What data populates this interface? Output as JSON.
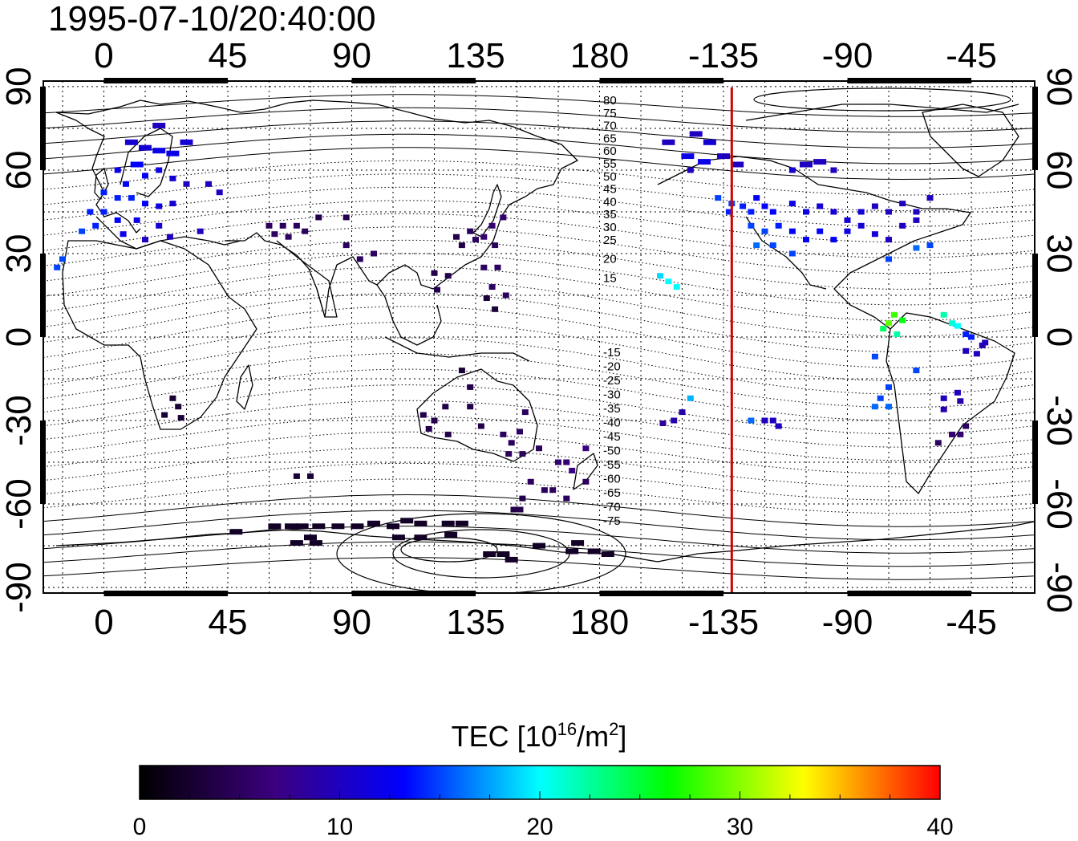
{
  "timestamp": "1995-07-10/20:40:00",
  "map": {
    "lon_ticks_top": [
      "0",
      "45",
      "90",
      "135",
      "180",
      "-135",
      "-90",
      "-45"
    ],
    "lon_ticks_bottom": [
      "0",
      "45",
      "90",
      "135",
      "180",
      "-135",
      "-90",
      "-45"
    ],
    "lat_ticks_left": [
      "90",
      "60",
      "30",
      "0",
      "-30",
      "-60",
      "-90"
    ],
    "lat_ticks_right": [
      "90",
      "60",
      "30",
      "0",
      "-30",
      "-60",
      "-90"
    ],
    "lon_range": [
      -22,
      338
    ],
    "lat_range": [
      -92,
      92
    ],
    "terminator_lon": -132,
    "terminator_color": "#d40000",
    "grid": true,
    "contour_labels_north": [
      "80",
      "75",
      "70",
      "65",
      "60",
      "55",
      "50",
      "45",
      "40",
      "35",
      "30",
      "25",
      "20",
      "15"
    ],
    "contour_labels_south": [
      "-15",
      "-20",
      "-25",
      "-30",
      "-35",
      "-40",
      "-45",
      "-50",
      "-55",
      "-60",
      "-65",
      "-70",
      "-75"
    ]
  },
  "colorbar": {
    "title_main": "TEC  [10",
    "title_sup": "16",
    "title_mid": "/m",
    "title_sup2": "2",
    "title_end": "]",
    "ticks": [
      "0",
      "10",
      "20",
      "30",
      "40"
    ],
    "min": 0,
    "max": 40,
    "colormap": [
      "#000000",
      "#3c0080",
      "#0000ff",
      "#00ffff",
      "#00ff00",
      "#ffff00",
      "#ff0000"
    ]
  },
  "chart_data": {
    "type": "scatter",
    "title": "1995-07-10/20:40:00",
    "xlabel": "",
    "ylabel": "",
    "xlim": [
      -22,
      338
    ],
    "ylim": [
      -92,
      92
    ],
    "value_label": "TEC [10^16/m^2]",
    "value_range": [
      0,
      40
    ],
    "points": [
      [
        10,
        70,
        11
      ],
      [
        15,
        68,
        11
      ],
      [
        20,
        67,
        12
      ],
      [
        25,
        66,
        12
      ],
      [
        30,
        70,
        11
      ],
      [
        12,
        62,
        13
      ],
      [
        5,
        60,
        12
      ],
      [
        8,
        55,
        13
      ],
      [
        15,
        58,
        13
      ],
      [
        20,
        60,
        12
      ],
      [
        25,
        57,
        11
      ],
      [
        30,
        55,
        10
      ],
      [
        38,
        55,
        10
      ],
      [
        42,
        52,
        10
      ],
      [
        0,
        52,
        14
      ],
      [
        5,
        50,
        14
      ],
      [
        10,
        50,
        14
      ],
      [
        15,
        48,
        13
      ],
      [
        20,
        47,
        12
      ],
      [
        25,
        48,
        11
      ],
      [
        -5,
        45,
        14
      ],
      [
        0,
        45,
        14
      ],
      [
        5,
        42,
        13
      ],
      [
        12,
        42,
        12
      ],
      [
        20,
        40,
        11
      ],
      [
        -8,
        38,
        15
      ],
      [
        -3,
        40,
        14
      ],
      [
        7,
        37,
        12
      ],
      [
        15,
        35,
        10
      ],
      [
        24,
        36,
        10
      ],
      [
        -15,
        28,
        15
      ],
      [
        -17,
        25,
        15
      ],
      [
        20,
        76,
        10
      ],
      [
        35,
        38,
        10
      ],
      [
        60,
        40,
        5
      ],
      [
        65,
        40,
        5
      ],
      [
        70,
        40,
        5
      ],
      [
        73,
        38,
        5
      ],
      [
        78,
        43,
        4
      ],
      [
        88,
        43,
        4
      ],
      [
        62,
        37,
        5
      ],
      [
        67,
        36,
        5
      ],
      [
        88,
        33,
        5
      ],
      [
        93,
        28,
        5
      ],
      [
        98,
        30,
        5
      ],
      [
        128,
        36,
        4
      ],
      [
        130,
        33,
        4
      ],
      [
        133,
        38,
        5
      ],
      [
        135,
        35,
        5
      ],
      [
        138,
        36,
        6
      ],
      [
        141,
        40,
        6
      ],
      [
        145,
        43,
        6
      ],
      [
        142,
        33,
        5
      ],
      [
        138,
        25,
        5
      ],
      [
        143,
        25,
        5
      ],
      [
        141,
        18,
        5
      ],
      [
        146,
        15,
        5
      ],
      [
        120,
        23,
        4
      ],
      [
        121,
        17,
        4
      ],
      [
        125,
        22,
        4
      ],
      [
        139,
        14,
        3
      ],
      [
        142,
        10,
        3
      ],
      [
        130,
        -12,
        3
      ],
      [
        133,
        -18,
        4
      ],
      [
        124,
        -25,
        4
      ],
      [
        120,
        -30,
        4
      ],
      [
        118,
        -33,
        4
      ],
      [
        116,
        -28,
        4
      ],
      [
        125,
        -35,
        4
      ],
      [
        133,
        -25,
        4
      ],
      [
        137,
        -32,
        4
      ],
      [
        145,
        -35,
        5
      ],
      [
        148,
        -38,
        5
      ],
      [
        151,
        -34,
        5
      ],
      [
        153,
        -27,
        5
      ],
      [
        147,
        -42,
        5
      ],
      [
        152,
        -42,
        5
      ],
      [
        158,
        -40,
        5
      ],
      [
        165,
        -45,
        6
      ],
      [
        168,
        -45,
        6
      ],
      [
        170,
        -48,
        7
      ],
      [
        175,
        -40,
        7
      ],
      [
        175,
        -52,
        5
      ],
      [
        155,
        -52,
        5
      ],
      [
        160,
        -55,
        5
      ],
      [
        163,
        -55,
        5
      ],
      [
        168,
        -58,
        5
      ],
      [
        152,
        -58,
        4
      ],
      [
        150,
        -62,
        4
      ],
      [
        27,
        -25,
        3
      ],
      [
        28,
        -29,
        3
      ],
      [
        22,
        -28,
        3
      ],
      [
        25,
        -22,
        3
      ],
      [
        70,
        -50,
        3
      ],
      [
        75,
        -50,
        3
      ],
      [
        48,
        -70,
        2
      ],
      [
        62,
        -68,
        2
      ],
      [
        68,
        -68,
        2
      ],
      [
        72,
        -68,
        2
      ],
      [
        78,
        -68,
        2
      ],
      [
        85,
        -68,
        2
      ],
      [
        92,
        -68,
        2
      ],
      [
        98,
        -67,
        2
      ],
      [
        105,
        -68,
        2
      ],
      [
        110,
        -66,
        2
      ],
      [
        115,
        -67,
        2
      ],
      [
        125,
        -67,
        2
      ],
      [
        130,
        -67,
        2
      ],
      [
        75,
        -72,
        2
      ],
      [
        70,
        -74,
        2
      ],
      [
        77,
        -74,
        2
      ],
      [
        107,
        -72,
        2
      ],
      [
        115,
        -72,
        2
      ],
      [
        126,
        -71,
        2
      ],
      [
        140,
        -78,
        2
      ],
      [
        145,
        -78,
        2
      ],
      [
        148,
        -80,
        2
      ],
      [
        158,
        -75,
        2
      ],
      [
        170,
        -77,
        2
      ],
      [
        178,
        -77,
        2
      ],
      [
        183,
        -78,
        2
      ],
      [
        172,
        -74,
        2
      ],
      [
        205,
        70,
        10
      ],
      [
        215,
        73,
        10
      ],
      [
        220,
        70,
        11
      ],
      [
        225,
        65,
        10
      ],
      [
        230,
        62,
        10
      ],
      [
        212,
        65,
        12
      ],
      [
        218,
        63,
        12
      ],
      [
        213,
        60,
        10
      ],
      [
        223,
        50,
        15
      ],
      [
        228,
        48,
        15
      ],
      [
        232,
        47,
        14
      ],
      [
        237,
        50,
        13
      ],
      [
        227,
        45,
        14
      ],
      [
        235,
        45,
        14
      ],
      [
        240,
        47,
        13
      ],
      [
        243,
        45,
        13
      ],
      [
        250,
        48,
        12
      ],
      [
        255,
        45,
        12
      ],
      [
        260,
        47,
        11
      ],
      [
        265,
        45,
        11
      ],
      [
        270,
        42,
        11
      ],
      [
        275,
        45,
        11
      ],
      [
        280,
        47,
        10
      ],
      [
        285,
        45,
        10
      ],
      [
        290,
        48,
        10
      ],
      [
        295,
        45,
        10
      ],
      [
        300,
        50,
        10
      ],
      [
        235,
        40,
        15
      ],
      [
        240,
        38,
        15
      ],
      [
        245,
        40,
        14
      ],
      [
        250,
        38,
        13
      ],
      [
        255,
        35,
        13
      ],
      [
        260,
        38,
        13
      ],
      [
        265,
        35,
        13
      ],
      [
        270,
        38,
        12
      ],
      [
        275,
        40,
        11
      ],
      [
        280,
        37,
        11
      ],
      [
        237,
        33,
        16
      ],
      [
        243,
        33,
        15
      ],
      [
        250,
        30,
        15
      ],
      [
        285,
        35,
        10
      ],
      [
        290,
        40,
        10
      ],
      [
        295,
        42,
        10
      ],
      [
        250,
        60,
        11
      ],
      [
        255,
        62,
        10
      ],
      [
        260,
        63,
        10
      ],
      [
        265,
        60,
        10
      ],
      [
        295,
        32,
        16
      ],
      [
        300,
        33,
        15
      ],
      [
        285,
        28,
        15
      ],
      [
        202,
        22,
        19
      ],
      [
        205,
        20,
        20
      ],
      [
        208,
        18,
        20
      ],
      [
        213,
        -22,
        18
      ],
      [
        210,
        -27,
        9
      ],
      [
        207,
        -30,
        9
      ],
      [
        203,
        -31,
        8
      ],
      [
        287,
        8,
        28
      ],
      [
        285,
        5,
        29
      ],
      [
        290,
        6,
        26
      ],
      [
        283,
        3,
        24
      ],
      [
        288,
        1,
        22
      ],
      [
        305,
        8,
        22
      ],
      [
        308,
        5,
        21
      ],
      [
        310,
        4,
        20
      ],
      [
        315,
        0,
        14
      ],
      [
        319,
        -3,
        9
      ],
      [
        313,
        1,
        14
      ],
      [
        317,
        -6,
        10
      ],
      [
        313,
        -5,
        10
      ],
      [
        320,
        -2,
        10
      ],
      [
        280,
        -7,
        15
      ],
      [
        285,
        -18,
        15
      ],
      [
        282,
        -22,
        15
      ],
      [
        280,
        -25,
        16
      ],
      [
        285,
        -25,
        16
      ],
      [
        295,
        -12,
        15
      ],
      [
        305,
        -22,
        10
      ],
      [
        305,
        -26,
        9
      ],
      [
        311,
        -23,
        9
      ],
      [
        310,
        -20,
        10
      ],
      [
        308,
        -35,
        6
      ],
      [
        311,
        -35,
        6
      ],
      [
        303,
        -38,
        5
      ],
      [
        313,
        -32,
        5
      ],
      [
        235,
        -30,
        16
      ],
      [
        240,
        -30,
        10
      ],
      [
        243,
        -30,
        10
      ],
      [
        245,
        -32,
        10
      ]
    ]
  }
}
